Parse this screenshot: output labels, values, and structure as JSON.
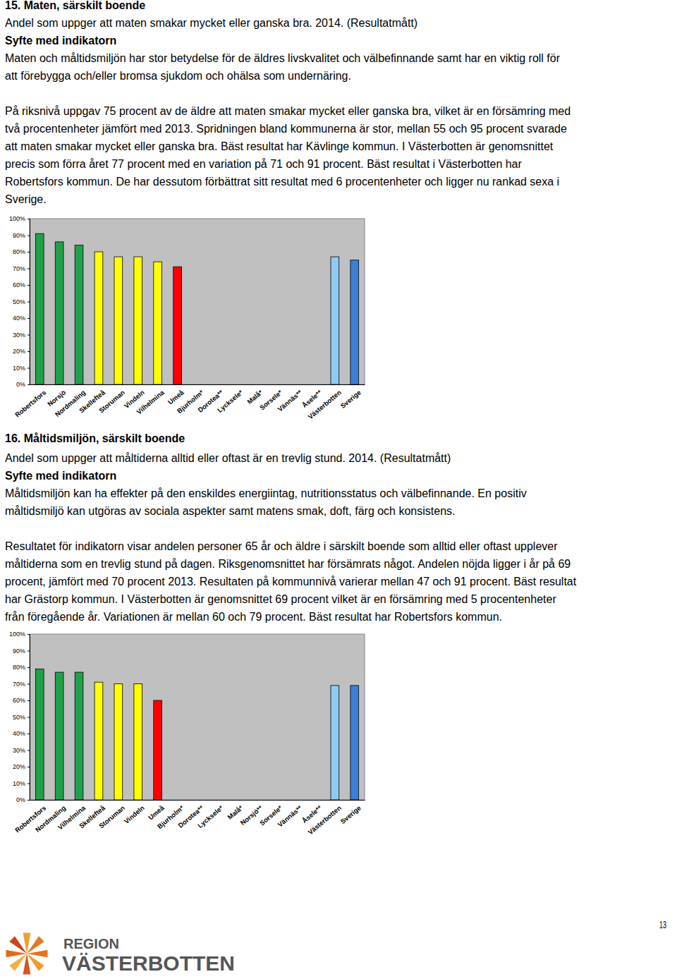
{
  "sections": [
    {
      "heading": "15. Maten, särskilt boende",
      "subtitle": "Andel som uppger att maten smakar mycket eller ganska bra. 2014. (Resultatmått)",
      "purpose_heading": "Syfte med indikatorn",
      "paragraphs": [
        [
          "Maten och måltidsmiljön har stor betydelse för de äldres livskvalitet och välbefinnande samt har en viktig roll för",
          "att förebygga och/eller bromsa sjukdom och ohälsa som undernäring."
        ],
        [
          "På riksnivå uppgav 75 procent av de äldre att maten smakar mycket eller ganska bra, vilket är en försämring med",
          "två procentenheter jämfört med 2013. Spridningen bland kommunerna är stor, mellan 55 och 95 procent svarade",
          "att maten smakar mycket eller ganska bra. Bäst resultat har Kävlinge kommun. I Västerbotten är genomsnittet",
          "precis som förra året 77 procent med en variation på 71 och 91 procent. Bäst resultat i Västerbotten har",
          "Robertsfors kommun. De har dessutom förbättrat sitt resultat med 6 procentenheter och ligger nu rankad sexa i",
          "Sverige."
        ]
      ]
    },
    {
      "heading": "16. Måltidsmiljön, särskilt boende",
      "subtitle": "Andel som uppger att måltiderna alltid eller oftast är en trevlig stund. 2014. (Resultatmått)",
      "purpose_heading": "Syfte med indikatorn",
      "paragraphs": [
        [
          "Måltidsmiljön kan ha effekter på den enskildes energiintag, nutritionsstatus och välbefinnande. En positiv",
          "måltidsmiljö kan utgöras av sociala aspekter samt matens smak, doft, färg och konsistens."
        ],
        [
          "Resultatet för indikatorn visar andelen personer 65 år och äldre i särskilt boende som alltid eller oftast upplever",
          "måltiderna som en trevlig stund på dagen. Riksgenomsnittet har försämrats något. Andelen nöjda ligger i år på 69",
          "procent, jämfört med 70 procent 2013. Resultaten på kommunnivå varierar mellan 47 och 91 procent. Bäst resultat",
          "har Grästorp kommun. I Västerbotten är genomsnittet 69 procent vilket är en försämring med 5 procentenheter",
          "från föregående år. Variationen är mellan 60 och 79 procent. Bäst resultat har Robertsfors kommun."
        ]
      ]
    }
  ],
  "chart_data": [
    {
      "type": "bar",
      "categories": [
        "Robertsfors",
        "Norsjö",
        "Nordmaling",
        "Skellefteå",
        "Storuman",
        "Vindeln",
        "Vilhelmina",
        "Umeå",
        "Bjurholm*",
        "Dorotea**",
        "Lycksele*",
        "Malå*",
        "Sorsele*",
        "Vännäs**",
        "Åsele**",
        "Västerbotten",
        "Sverige"
      ],
      "values": [
        91,
        86,
        84,
        80,
        77,
        77,
        74,
        71,
        null,
        null,
        null,
        null,
        null,
        null,
        null,
        77,
        75
      ],
      "colors": [
        "#1fa14a",
        "#1fa14a",
        "#1fa14a",
        "#ffff00",
        "#ffff00",
        "#ffff00",
        "#ffff00",
        "#ff0000",
        null,
        null,
        null,
        null,
        null,
        null,
        null,
        "#8fcaf2",
        "#3b7fd6"
      ],
      "ylim": [
        0,
        100
      ],
      "yticks": [
        {
          "value": 0,
          "label": "0%"
        },
        {
          "value": 10,
          "label": "10%"
        },
        {
          "value": 20,
          "label": "20%"
        },
        {
          "value": 30,
          "label": "30%"
        },
        {
          "value": 40,
          "label": "40%"
        },
        {
          "value": 50,
          "label": "50%"
        },
        {
          "value": 60,
          "label": "60%"
        },
        {
          "value": 70,
          "label": "70%"
        },
        {
          "value": 80,
          "label": "80%"
        },
        {
          "value": 90,
          "label": "90%"
        },
        {
          "value": 100,
          "label": "100%"
        }
      ],
      "grid": false
    },
    {
      "type": "bar",
      "categories": [
        "Robertsfors",
        "Nordmaling",
        "Vilhelmina",
        "Skellefteå",
        "Storuman",
        "Vindeln",
        "Umeå",
        "Bjurholm*",
        "Dorotea**",
        "Lycksele*",
        "Malå*",
        "Norsjö**",
        "Sorsele*",
        "Vännäs**",
        "Åsele**",
        "Västerbotten",
        "Sverige"
      ],
      "values": [
        79,
        77,
        77,
        71,
        70,
        70,
        60,
        null,
        null,
        null,
        null,
        null,
        null,
        null,
        null,
        69,
        69
      ],
      "colors": [
        "#1fa14a",
        "#1fa14a",
        "#1fa14a",
        "#ffff00",
        "#ffff00",
        "#ffff00",
        "#ff0000",
        null,
        null,
        null,
        null,
        null,
        null,
        null,
        null,
        "#8fcaf2",
        "#3b7fd6"
      ],
      "ylim": [
        0,
        100
      ],
      "yticks": [
        {
          "value": 0,
          "label": "0%"
        },
        {
          "value": 10,
          "label": "10%"
        },
        {
          "value": 20,
          "label": "20%"
        },
        {
          "value": 30,
          "label": "30%"
        },
        {
          "value": 40,
          "label": "40%"
        },
        {
          "value": 50,
          "label": "50%"
        },
        {
          "value": 60,
          "label": "60%"
        },
        {
          "value": 70,
          "label": "70%"
        },
        {
          "value": 80,
          "label": "80%"
        },
        {
          "value": 90,
          "label": "90%"
        },
        {
          "value": 100,
          "label": "100%"
        }
      ],
      "grid": false
    }
  ],
  "footer": {
    "page_number": "13",
    "logo": [
      "REGION",
      "VÄSTERBOTTEN"
    ]
  }
}
